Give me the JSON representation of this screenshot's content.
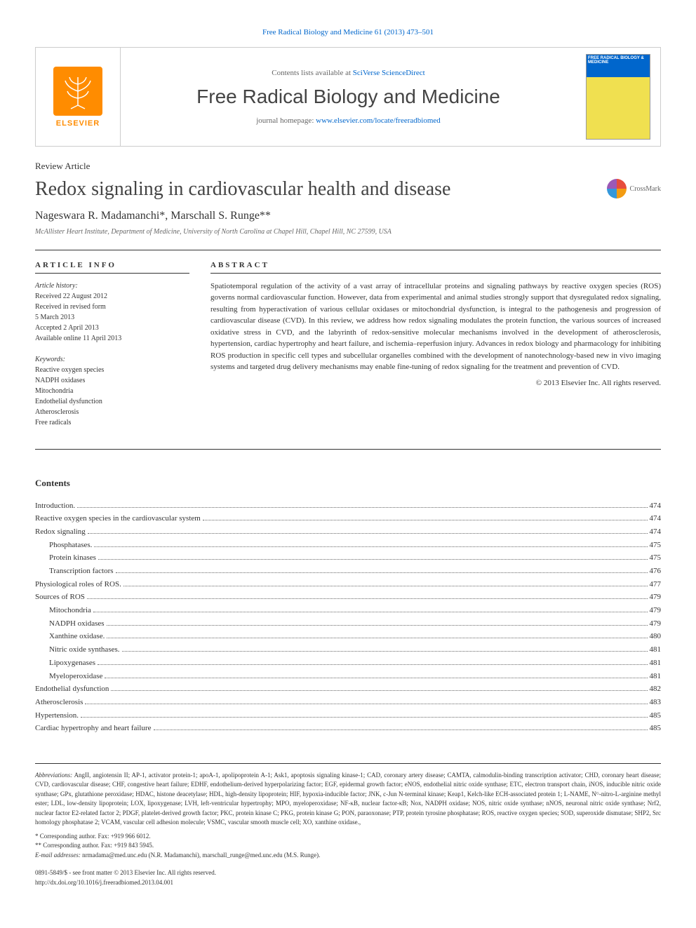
{
  "top_link": "Free Radical Biology and Medicine 61 (2013) 473–501",
  "header": {
    "contents_avail_prefix": "Contents lists available at ",
    "contents_avail_link": "SciVerse ScienceDirect",
    "journal_name": "Free Radical Biology and Medicine",
    "homepage_prefix": "journal homepage: ",
    "homepage_link": "www.elsevier.com/locate/freeradbiomed",
    "elsevier_label": "ELSEVIER",
    "cover_label": "FREE RADICAL BIOLOGY & MEDICINE"
  },
  "article": {
    "type": "Review Article",
    "title": "Redox signaling in cardiovascular health and disease",
    "authors": "Nageswara R. Madamanchi*, Marschall S. Runge**",
    "affiliation": "McAllister Heart Institute, Department of Medicine, University of North Carolina at Chapel Hill, Chapel Hill, NC 27599, USA",
    "crossmark": "CrossMark"
  },
  "article_info": {
    "header": "ARTICLE INFO",
    "history_title": "Article history:",
    "history_lines": [
      "Received 22 August 2012",
      "Received in revised form",
      "5 March 2013",
      "Accepted 2 April 2013",
      "Available online 11 April 2013"
    ],
    "keywords_title": "Keywords:",
    "keywords": [
      "Reactive oxygen species",
      "NADPH oxidases",
      "Mitochondria",
      "Endothelial dysfunction",
      "Atherosclerosis",
      "Free radicals"
    ]
  },
  "abstract": {
    "header": "ABSTRACT",
    "text": "Spatiotemporal regulation of the activity of a vast array of intracellular proteins and signaling pathways by reactive oxygen species (ROS) governs normal cardiovascular function. However, data from experimental and animal studies strongly support that dysregulated redox signaling, resulting from hyperactivation of various cellular oxidases or mitochondrial dysfunction, is integral to the pathogenesis and progression of cardiovascular disease (CVD). In this review, we address how redox signaling modulates the protein function, the various sources of increased oxidative stress in CVD, and the labyrinth of redox-sensitive molecular mechanisms involved in the development of atherosclerosis, hypertension, cardiac hypertrophy and heart failure, and ischemia–reperfusion injury. Advances in redox biology and pharmacology for inhibiting ROS production in specific cell types and subcellular organelles combined with the development of nanotechnology-based new in vivo imaging systems and targeted drug delivery mechanisms may enable fine-tuning of redox signaling for the treatment and prevention of CVD.",
    "copyright": "© 2013 Elsevier Inc. All rights reserved."
  },
  "contents": {
    "header": "Contents",
    "items": [
      {
        "label": "Introduction.",
        "page": "474",
        "indent": 0
      },
      {
        "label": "Reactive oxygen species in the cardiovascular system",
        "page": "474",
        "indent": 0
      },
      {
        "label": "Redox signaling",
        "page": "474",
        "indent": 0
      },
      {
        "label": "Phosphatases.",
        "page": "475",
        "indent": 1
      },
      {
        "label": "Protein kinases",
        "page": "475",
        "indent": 1
      },
      {
        "label": "Transcription factors",
        "page": "476",
        "indent": 1
      },
      {
        "label": "Physiological roles of ROS.",
        "page": "477",
        "indent": 0
      },
      {
        "label": "Sources of ROS",
        "page": "479",
        "indent": 0
      },
      {
        "label": "Mitochondria",
        "page": "479",
        "indent": 1
      },
      {
        "label": "NADPH oxidases",
        "page": "479",
        "indent": 1
      },
      {
        "label": "Xanthine oxidase.",
        "page": "480",
        "indent": 1
      },
      {
        "label": "Nitric oxide synthases.",
        "page": "481",
        "indent": 1
      },
      {
        "label": "Lipoxygenases",
        "page": "481",
        "indent": 1
      },
      {
        "label": "Myeloperoxidase",
        "page": "481",
        "indent": 1
      },
      {
        "label": "Endothelial dysfunction",
        "page": "482",
        "indent": 0
      },
      {
        "label": "Atherosclerosis",
        "page": "483",
        "indent": 0
      },
      {
        "label": "Hypertension.",
        "page": "485",
        "indent": 0
      },
      {
        "label": "Cardiac hypertrophy and heart failure",
        "page": "485",
        "indent": 0
      }
    ]
  },
  "footer": {
    "abbrev_label": "Abbreviations:",
    "abbrev_text": "AngII, angiotensin II; AP-1, activator protein-1; apoA-1, apolipoprotein A-1; Ask1, apoptosis signaling kinase-1; CAD, coronary artery disease; CAMTA, calmodulin-binding transcription activator; CHD, coronary heart disease; CVD, cardiovascular disease; CHF, congestive heart failure; EDHF, endothelium-derived hyperpolarizing factor; EGF, epidermal growth factor; eNOS, endothelial nitric oxide synthase; ETC, electron transport chain, iNOS, inducible nitric oxide synthase; GPx, glutathione peroxidase; HDAC, histone deacetylase; HDL, high-density lipoprotein; HIF, hypoxia-inducible factor; JNK, c-Jun N-terminal kinase; Keap1, Kelch-like ECH-associated protein 1; L-NAME, Nᴳ-nitro-L-arginine methyl ester; LDL, low-density lipoprotein; LOX, lipoxygenase; LVH, left-ventricular hypertrophy; MPO, myeloperoxidase; NF-κB, nuclear factor-κB; Nox, NADPH oxidase; NOS, nitric oxide synthase; nNOS, neuronal nitric oxide synthase; Nrf2, nuclear factor E2-related factor 2; PDGF, platelet-derived growth factor; PKC, protein kinase C; PKG, protein kinase G; PON, paraoxonase; PTP, protein tyrosine phosphatase; ROS, reactive oxygen species; SOD, superoxide dismutase; SHP2, Src homology phosphatase 2; VCAM, vascular cell adhesion molecule; VSMC, vascular smooth muscle cell; XO, xanthine oxidase.,",
    "corr1": "* Corresponding author. Fax: +919 966 6012.",
    "corr2": "** Corresponding author. Fax: +919 843 5945.",
    "email_label": "E-mail addresses:",
    "email_text": "nrmadama@med.unc.edu (N.R. Madamanchi), marschall_runge@med.unc.edu (M.S. Runge).",
    "issn": "0891-5849/$ - see front matter © 2013 Elsevier Inc. All rights reserved.",
    "doi": "http://dx.doi.org/10.1016/j.freeradbiomed.2013.04.001"
  }
}
